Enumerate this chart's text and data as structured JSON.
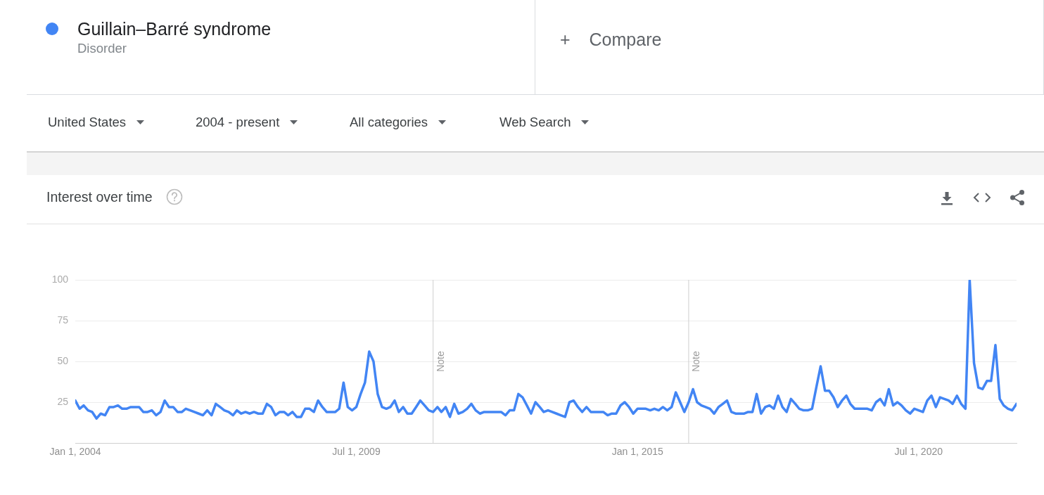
{
  "chart_data": {
    "type": "line",
    "title": "Interest over time",
    "x": [
      "2004-01",
      "2004-02",
      "2004-03",
      "2004-04",
      "2004-05",
      "2004-06",
      "2004-07",
      "2004-08",
      "2004-09",
      "2004-10",
      "2004-11",
      "2004-12",
      "2005-01",
      "2005-02",
      "2005-03",
      "2005-04",
      "2005-05",
      "2005-06",
      "2005-07",
      "2005-08",
      "2005-09",
      "2005-10",
      "2005-11",
      "2005-12",
      "2006-01",
      "2006-02",
      "2006-03",
      "2006-04",
      "2006-05",
      "2006-06",
      "2006-07",
      "2006-08",
      "2006-09",
      "2006-10",
      "2006-11",
      "2006-12",
      "2007-01",
      "2007-02",
      "2007-03",
      "2007-04",
      "2007-05",
      "2007-06",
      "2007-07",
      "2007-08",
      "2007-09",
      "2007-10",
      "2007-11",
      "2007-12",
      "2008-01",
      "2008-02",
      "2008-03",
      "2008-04",
      "2008-05",
      "2008-06",
      "2008-07",
      "2008-08",
      "2008-09",
      "2008-10",
      "2008-11",
      "2008-12",
      "2009-01",
      "2009-02",
      "2009-03",
      "2009-04",
      "2009-05",
      "2009-06",
      "2009-07",
      "2009-08",
      "2009-09",
      "2009-10",
      "2009-11",
      "2009-12",
      "2010-01",
      "2010-02",
      "2010-03",
      "2010-04",
      "2010-05",
      "2010-06",
      "2010-07",
      "2010-08",
      "2010-09",
      "2010-10",
      "2010-11",
      "2010-12",
      "2011-01",
      "2011-02",
      "2011-03",
      "2011-04",
      "2011-05",
      "2011-06",
      "2011-07",
      "2011-08",
      "2011-09",
      "2011-10",
      "2011-11",
      "2011-12",
      "2012-01",
      "2012-02",
      "2012-03",
      "2012-04",
      "2012-05",
      "2012-06",
      "2012-07",
      "2012-08",
      "2012-09",
      "2012-10",
      "2012-11",
      "2012-12",
      "2013-01",
      "2013-02",
      "2013-03",
      "2013-04",
      "2013-05",
      "2013-06",
      "2013-07",
      "2013-08",
      "2013-09",
      "2013-10",
      "2013-11",
      "2013-12",
      "2014-01",
      "2014-02",
      "2014-03",
      "2014-04",
      "2014-05",
      "2014-06",
      "2014-07",
      "2014-08",
      "2014-09",
      "2014-10",
      "2014-11",
      "2014-12",
      "2015-01",
      "2015-02",
      "2015-03",
      "2015-04",
      "2015-05",
      "2015-06",
      "2015-07",
      "2015-08",
      "2015-09",
      "2015-10",
      "2015-11",
      "2015-12",
      "2016-01",
      "2016-02",
      "2016-03",
      "2016-04",
      "2016-05",
      "2016-06",
      "2016-07",
      "2016-08",
      "2016-09",
      "2016-10",
      "2016-11",
      "2016-12",
      "2017-01",
      "2017-02",
      "2017-03",
      "2017-04",
      "2017-05",
      "2017-06",
      "2017-07",
      "2017-08",
      "2017-09",
      "2017-10",
      "2017-11",
      "2017-12",
      "2018-01",
      "2018-02",
      "2018-03",
      "2018-04",
      "2018-05",
      "2018-06",
      "2018-07",
      "2018-08",
      "2018-09",
      "2018-10",
      "2018-11",
      "2018-12",
      "2019-01",
      "2019-02",
      "2019-03",
      "2019-04",
      "2019-05",
      "2019-06",
      "2019-07",
      "2019-08",
      "2019-09",
      "2019-10",
      "2019-11",
      "2019-12",
      "2020-01",
      "2020-02",
      "2020-03",
      "2020-04",
      "2020-05",
      "2020-06",
      "2020-07",
      "2020-08",
      "2020-09",
      "2020-10",
      "2020-11",
      "2020-12",
      "2021-01",
      "2021-02",
      "2021-03",
      "2021-04",
      "2021-05",
      "2021-06",
      "2021-07",
      "2021-08",
      "2021-09",
      "2021-10",
      "2021-11",
      "2021-12",
      "2022-01",
      "2022-02",
      "2022-03",
      "2022-04",
      "2022-05",
      "2022-06"
    ],
    "series": [
      {
        "name": "Guillain–Barré syndrome",
        "color": "#4285f4",
        "values": [
          26,
          21,
          23,
          20,
          19,
          15,
          18,
          17,
          22,
          22,
          23,
          21,
          21,
          22,
          22,
          22,
          19,
          19,
          20,
          17,
          19,
          26,
          22,
          22,
          19,
          19,
          21,
          20,
          19,
          18,
          17,
          20,
          17,
          24,
          22,
          20,
          19,
          17,
          20,
          18,
          19,
          18,
          19,
          18,
          18,
          24,
          22,
          17,
          19,
          19,
          17,
          19,
          16,
          16,
          21,
          21,
          19,
          26,
          22,
          19,
          19,
          19,
          21,
          37,
          22,
          20,
          22,
          30,
          37,
          56,
          50,
          30,
          22,
          21,
          22,
          26,
          19,
          22,
          18,
          18,
          22,
          26,
          23,
          20,
          19,
          22,
          19,
          22,
          16,
          24,
          18,
          19,
          21,
          24,
          20,
          18,
          19,
          19,
          19,
          19,
          19,
          17,
          20,
          20,
          30,
          28,
          23,
          18,
          25,
          22,
          19,
          20,
          19,
          18,
          17,
          16,
          25,
          26,
          22,
          19,
          22,
          19,
          19,
          19,
          19,
          17,
          18,
          18,
          23,
          25,
          22,
          18,
          21,
          21,
          21,
          20,
          21,
          20,
          22,
          20,
          22,
          31,
          25,
          19,
          25,
          33,
          25,
          23,
          22,
          21,
          18,
          22,
          24,
          26,
          19,
          18,
          18,
          18,
          19,
          19,
          30,
          18,
          22,
          23,
          21,
          29,
          22,
          19,
          27,
          24,
          21,
          20,
          20,
          21,
          34,
          47,
          32,
          32,
          28,
          22,
          26,
          29,
          24,
          21,
          21,
          21,
          21,
          20,
          25,
          27,
          23,
          33,
          23,
          25,
          23,
          20,
          18,
          21,
          20,
          19,
          26,
          29,
          22,
          28,
          27,
          26,
          24,
          29,
          24,
          21,
          100,
          49,
          34,
          33,
          38,
          38,
          60,
          27,
          23,
          21,
          20,
          24
        ]
      }
    ],
    "xlim": [
      "2004-01-01",
      "2022-06-01"
    ],
    "xticks": [
      {
        "value": "2004-01-01",
        "label": "Jan 1, 2004"
      },
      {
        "value": "2009-07-01",
        "label": "Jul 1, 2009"
      },
      {
        "value": "2015-01-01",
        "label": "Jan 1, 2015"
      },
      {
        "value": "2020-07-01",
        "label": "Jul 1, 2020"
      }
    ],
    "ylim": [
      0,
      100
    ],
    "yticks": [
      25,
      50,
      75,
      100
    ],
    "grid": "y",
    "legend": "top left",
    "marker": "none",
    "line_style": "solid",
    "ref_lines": [
      {
        "axis": "x",
        "value": "2011-01-01",
        "label": "Note"
      },
      {
        "axis": "x",
        "value": "2016-01-01",
        "label": "Note"
      }
    ],
    "annotations": [
      "Disorder",
      "+ Compare",
      "United States",
      "2004 - present",
      "All categories",
      "Web Search"
    ]
  }
}
